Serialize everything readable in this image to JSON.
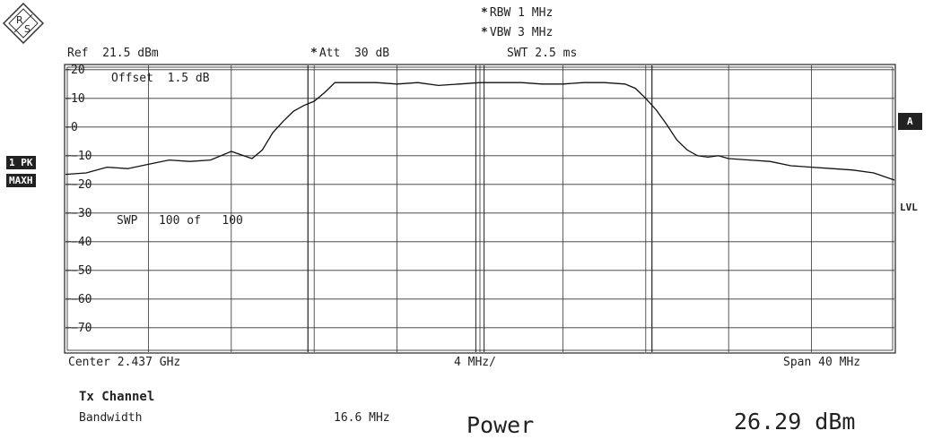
{
  "header": {
    "logo_text": "R&S",
    "rbw": "RBW 1 MHz",
    "vbw": "VBW 3 MHz",
    "swt": "SWT 2.5 ms",
    "ref": "Ref  21.5 dBm",
    "att": "Att  30 dB"
  },
  "side_labels": {
    "trace": "1 PK",
    "mode": "MAXH",
    "trace_a": "A",
    "lvl": "LVL"
  },
  "plot_annotations": {
    "offset": "Offset  1.5 dB",
    "sweep": "SWP   100 of   100"
  },
  "footer": {
    "center": "Center 2.437 GHz",
    "div": "4 MHz/",
    "span": "Span 40 MHz"
  },
  "results": {
    "heading": "Tx Channel",
    "bw_label": "Bandwidth",
    "bw_value": "16.6 MHz",
    "power_label": "Power",
    "power_value": "26.29 dBm"
  },
  "chart_data": {
    "type": "line",
    "title": "",
    "xlabel": "",
    "ylabel": "",
    "xlim": [
      2417,
      2457
    ],
    "ylim": [
      -78.5,
      21.5
    ],
    "y_ticks": [
      20,
      10,
      0,
      -10,
      -20,
      -30,
      -40,
      -50,
      -60,
      -70
    ],
    "grid": true,
    "channel_edges": [
      2428.7,
      2445.3
    ],
    "series": [
      {
        "x": [
          2417,
          2418,
          2419,
          2420,
          2421,
          2422,
          2423,
          2424,
          2425,
          2426,
          2426.5,
          2427,
          2427.5,
          2428,
          2428.5,
          2429,
          2429.5,
          2430,
          2431,
          2432,
          2433,
          2434,
          2435,
          2436,
          2437,
          2438,
          2439,
          2440,
          2441,
          2442,
          2443,
          2444,
          2444.5,
          2445,
          2445.5,
          2446,
          2446.5,
          2447,
          2447.5,
          2448,
          2448.5,
          2449,
          2450,
          2451,
          2452,
          2453,
          2454,
          2455,
          2456,
          2457
        ],
        "values": [
          -16.5,
          -16,
          -14,
          -14.5,
          -13,
          -11.5,
          -12,
          -11.5,
          -8.5,
          -11,
          -8,
          -2,
          2,
          5.5,
          7.5,
          9,
          12,
          15.5,
          15.5,
          15.5,
          15,
          15.5,
          14.5,
          15,
          15.5,
          15.5,
          15.5,
          15,
          15,
          15.5,
          15.5,
          15,
          13.5,
          10,
          6,
          1,
          -4.5,
          -8,
          -10,
          -10.5,
          -10,
          -11,
          -11.5,
          -12,
          -13.5,
          -14,
          -14.5,
          -15,
          -16,
          -18.5
        ]
      }
    ]
  }
}
